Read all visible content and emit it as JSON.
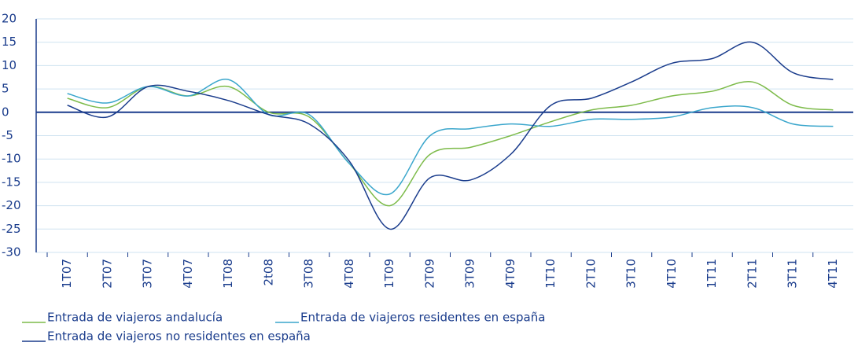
{
  "chart_data": {
    "type": "line",
    "categories": [
      "1T07",
      "2T07",
      "3T07",
      "4T07",
      "1T08",
      "2t08",
      "3T08",
      "4T08",
      "1T09",
      "2T09",
      "3T09",
      "4T09",
      "1T10",
      "2T10",
      "3T10",
      "4T10",
      "1T11",
      "2T11",
      "3T11",
      "4T11"
    ],
    "series": [
      {
        "name": "Entrada de viajeros andalucía",
        "color": "#7dbb4a",
        "values": [
          3,
          1,
          5.5,
          3.5,
          5.5,
          0,
          -1,
          -11,
          -20,
          -9,
          -7.5,
          -5,
          -2,
          0.5,
          1.5,
          3.5,
          4.5,
          6.5,
          1.5,
          0.5
        ]
      },
      {
        "name": "Entrada de viajeros residentes en españa",
        "color": "#3aa6cc",
        "values": [
          4,
          2,
          5.5,
          3.5,
          7,
          -0.5,
          -0.5,
          -11,
          -17.5,
          -5,
          -3.5,
          -2.5,
          -3,
          -1.5,
          -1.5,
          -1,
          1,
          1,
          -2.5,
          -3
        ]
      },
      {
        "name": "Entrada de viajeros no residentes en españa",
        "color": "#1a3c8c",
        "values": [
          1.5,
          -1,
          5.5,
          4.5,
          2.5,
          -0.5,
          -2.5,
          -10.5,
          -25,
          -14,
          -14.5,
          -9,
          1.5,
          3,
          6.5,
          10.5,
          11.5,
          15,
          8.5,
          7
        ]
      }
    ],
    "ylim": [
      -30,
      20
    ],
    "yticks": [
      -30,
      -25,
      -20,
      -15,
      -10,
      -5,
      0,
      5,
      10,
      15,
      20
    ],
    "grid": true
  }
}
